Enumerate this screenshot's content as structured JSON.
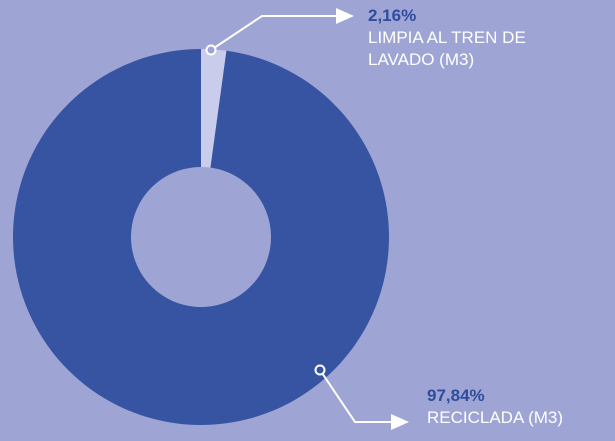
{
  "chart_data": {
    "type": "donut",
    "categories": [
      "LIMPIA AL TREN DE LAVADO (M3)",
      "RECICLADA (M3)"
    ],
    "values": [
      2.16,
      97.84
    ],
    "value_labels": [
      "2,16%",
      "97,84%"
    ],
    "colors": [
      "#c9cceb",
      "#3754a3"
    ]
  }
}
